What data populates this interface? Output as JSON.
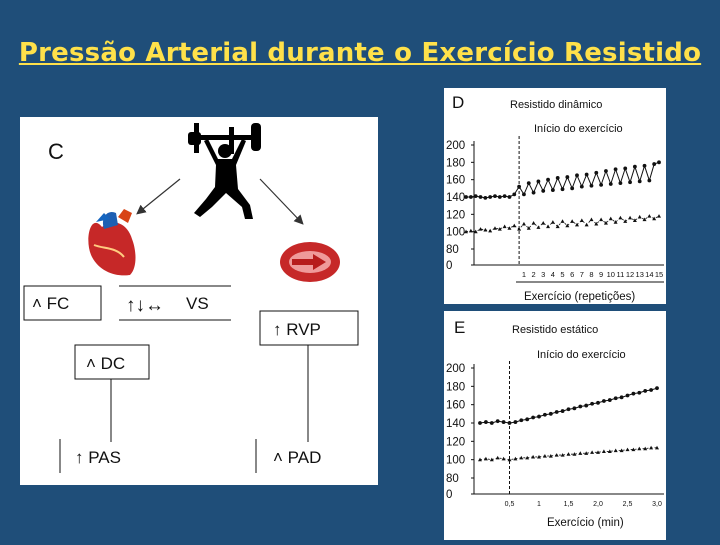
{
  "slide": {
    "title": "Pressão Arterial durante o Exercício Resistido"
  },
  "panel_c": {
    "letter": "C",
    "boxes": {
      "fc": "˄ FC",
      "vs_arrows": "↑↓↔",
      "vs": "VS",
      "rvp": "↑ RVP",
      "dc": "˄ DC",
      "pas": "↑ PAS",
      "pad": "˄ PAD"
    },
    "icons": [
      "weightlifter-icon",
      "heart-icon",
      "artery-icon"
    ]
  },
  "chart_data": [
    {
      "type": "scatter",
      "panel": "D",
      "title": "Resistido dinâmico",
      "annotation": "Início do exercício",
      "xlabel": "Exercício (repetições)",
      "ylabel": "",
      "x_ticks": [
        "1",
        "2",
        "3",
        "4",
        "5",
        "6",
        "7",
        "8",
        "9",
        "10",
        "11",
        "12",
        "13",
        "14",
        "15"
      ],
      "y_ticks": [
        0,
        80,
        100,
        120,
        140,
        160,
        180,
        200
      ],
      "ylim": [
        0,
        200
      ],
      "exercise_start_index": 0,
      "series": [
        {
          "style": "dots",
          "x": [
            -5,
            -4.5,
            -4,
            -3.5,
            -3,
            -2.5,
            -2,
            -1.5,
            -1,
            -0.5,
            0,
            0.5,
            1,
            1.5,
            2,
            2.5,
            3,
            3.5,
            4,
            4.5,
            5,
            5.5,
            6,
            6.5,
            7,
            7.5,
            8,
            8.5,
            9,
            9.5,
            10,
            10.5,
            11,
            11.5,
            12,
            12.5,
            13,
            13.5,
            14,
            14.5,
            15
          ],
          "y": [
            140,
            140,
            141,
            140,
            139,
            140,
            141,
            140,
            141,
            140,
            143,
            152,
            143,
            156,
            145,
            158,
            147,
            160,
            148,
            162,
            149,
            163,
            150,
            165,
            152,
            166,
            153,
            168,
            154,
            170,
            155,
            172,
            156,
            173,
            157,
            175,
            158,
            176,
            159,
            178,
            180
          ]
        },
        {
          "style": "triangles",
          "x": [
            -5,
            -4.5,
            -4,
            -3.5,
            -3,
            -2.5,
            -2,
            -1.5,
            -1,
            -0.5,
            0,
            0.5,
            1,
            1.5,
            2,
            2.5,
            3,
            3.5,
            4,
            4.5,
            5,
            5.5,
            6,
            6.5,
            7,
            7.5,
            8,
            8.5,
            9,
            9.5,
            10,
            10.5,
            11,
            11.5,
            12,
            12.5,
            13,
            13.5,
            14,
            14.5,
            15
          ],
          "y": [
            100,
            101,
            100,
            103,
            102,
            101,
            104,
            103,
            106,
            104,
            107,
            103,
            109,
            104,
            110,
            105,
            110,
            106,
            111,
            106,
            112,
            107,
            112,
            108,
            113,
            108,
            114,
            109,
            114,
            110,
            115,
            111,
            116,
            112,
            116,
            113,
            117,
            114,
            118,
            115,
            118
          ]
        }
      ]
    },
    {
      "type": "scatter",
      "panel": "E",
      "title": "Resistido estático",
      "annotation": "Início do exercício",
      "xlabel": "Exercício (min)",
      "ylabel": "",
      "x_ticks": [
        "0,5",
        "1",
        "1,5",
        "2,0",
        "2,5",
        "3,0"
      ],
      "y_ticks": [
        0,
        80,
        100,
        120,
        140,
        160,
        180,
        200
      ],
      "ylim": [
        0,
        200
      ],
      "exercise_start_x": 0.5,
      "series": [
        {
          "style": "dots",
          "x": [
            0.0,
            0.1,
            0.2,
            0.3,
            0.4,
            0.5,
            0.6,
            0.7,
            0.8,
            0.9,
            1.0,
            1.1,
            1.2,
            1.3,
            1.4,
            1.5,
            1.6,
            1.7,
            1.8,
            1.9,
            2.0,
            2.1,
            2.2,
            2.3,
            2.4,
            2.5,
            2.6,
            2.7,
            2.8,
            2.9,
            3.0
          ],
          "y": [
            140,
            141,
            140,
            142,
            141,
            140,
            141,
            143,
            144,
            146,
            147,
            149,
            150,
            152,
            153,
            155,
            156,
            158,
            159,
            161,
            162,
            164,
            165,
            167,
            168,
            170,
            172,
            173,
            175,
            176,
            178
          ]
        },
        {
          "style": "triangles",
          "x": [
            0.0,
            0.1,
            0.2,
            0.3,
            0.4,
            0.5,
            0.6,
            0.7,
            0.8,
            0.9,
            1.0,
            1.1,
            1.2,
            1.3,
            1.4,
            1.5,
            1.6,
            1.7,
            1.8,
            1.9,
            2.0,
            2.1,
            2.2,
            2.3,
            2.4,
            2.5,
            2.6,
            2.7,
            2.8,
            2.9,
            3.0
          ],
          "y": [
            100,
            101,
            100,
            102,
            101,
            100,
            101,
            102,
            102,
            103,
            103,
            104,
            104,
            105,
            105,
            106,
            106,
            107,
            107,
            108,
            108,
            109,
            109,
            110,
            110,
            111,
            111,
            112,
            112,
            113,
            113
          ]
        }
      ]
    }
  ]
}
